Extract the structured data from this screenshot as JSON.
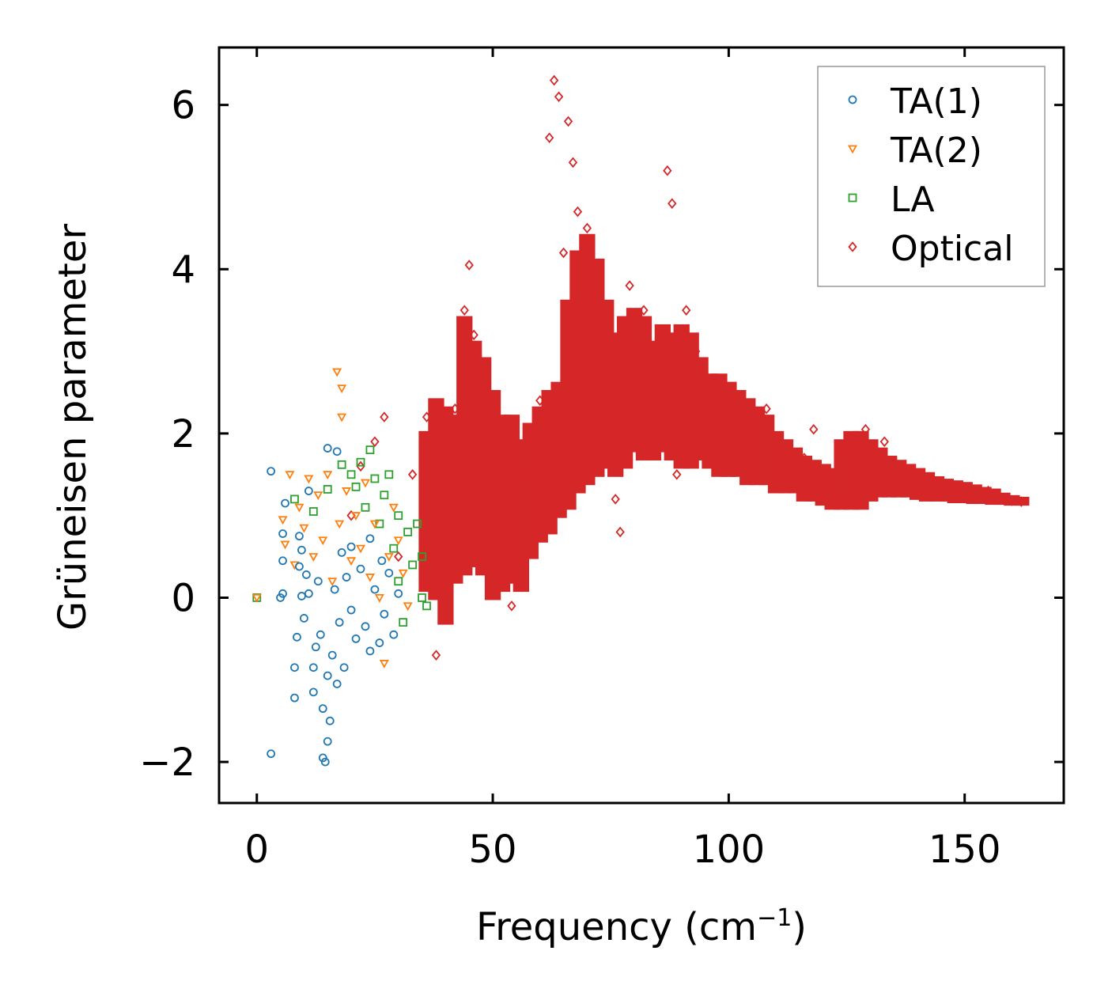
{
  "chart_data": {
    "type": "scatter",
    "title": "",
    "xlabel": "Frequency (cm",
    "xlabel_sup": "−1",
    "xlabel_end": ")",
    "ylabel": "Grüneisen parameter",
    "xlim": [
      -8,
      171
    ],
    "ylim": [
      -2.5,
      6.7
    ],
    "xticks": [
      0,
      50,
      100,
      150
    ],
    "xtick_labels": [
      "0",
      "50",
      "100",
      "150"
    ],
    "yticks": [
      -2,
      0,
      2,
      4,
      6
    ],
    "ytick_labels": [
      "−2",
      "0",
      "2",
      "4",
      "6"
    ],
    "legend_position": "top-right",
    "series": [
      {
        "name": "TA(1)",
        "marker": "circle",
        "color": "#1f77b4",
        "points": [
          [
            3,
            1.54
          ],
          [
            3,
            -1.9
          ],
          [
            5,
            0.0
          ],
          [
            5.5,
            0.78
          ],
          [
            5.5,
            0.45
          ],
          [
            5.5,
            0.05
          ],
          [
            6,
            1.15
          ],
          [
            8,
            -0.85
          ],
          [
            8,
            -1.22
          ],
          [
            8.5,
            -0.48
          ],
          [
            9,
            0.75
          ],
          [
            9,
            0.38
          ],
          [
            9.5,
            0.58
          ],
          [
            9.5,
            0.02
          ],
          [
            10,
            -0.25
          ],
          [
            10.5,
            0.28
          ],
          [
            11,
            1.3
          ],
          [
            11,
            0.05
          ],
          [
            12,
            -0.85
          ],
          [
            12,
            -1.15
          ],
          [
            12.5,
            -0.6
          ],
          [
            13,
            0.2
          ],
          [
            13.5,
            -0.45
          ],
          [
            14,
            -1.95
          ],
          [
            14,
            -1.35
          ],
          [
            14.5,
            -2.0
          ],
          [
            15,
            1.82
          ],
          [
            15,
            -1.75
          ],
          [
            15,
            -0.95
          ],
          [
            15.5,
            -1.5
          ],
          [
            16,
            -0.7
          ],
          [
            16.5,
            0.1
          ],
          [
            17,
            1.78
          ],
          [
            17,
            -1.05
          ],
          [
            17.5,
            -0.3
          ],
          [
            18,
            0.55
          ],
          [
            18.5,
            -0.85
          ],
          [
            19,
            0.25
          ],
          [
            20,
            -0.15
          ],
          [
            20,
            0.62
          ],
          [
            21,
            -0.5
          ],
          [
            22,
            0.35
          ],
          [
            23,
            -0.35
          ],
          [
            24,
            0.72
          ],
          [
            24,
            -0.65
          ],
          [
            25,
            0.1
          ],
          [
            26,
            -0.55
          ],
          [
            26.5,
            0.45
          ],
          [
            27,
            -0.2
          ],
          [
            28,
            0.3
          ],
          [
            29,
            -0.45
          ],
          [
            30,
            0.05
          ]
        ]
      },
      {
        "name": "TA(2)",
        "marker": "triangle-down",
        "color": "#ff7f0e",
        "points": [
          [
            0,
            0.0
          ],
          [
            5.5,
            0.95
          ],
          [
            6,
            0.65
          ],
          [
            7,
            1.5
          ],
          [
            8,
            0.4
          ],
          [
            9,
            1.1
          ],
          [
            10,
            0.85
          ],
          [
            11,
            1.45
          ],
          [
            12,
            0.5
          ],
          [
            13,
            1.25
          ],
          [
            14,
            0.7
          ],
          [
            15,
            1.5
          ],
          [
            16,
            0.2
          ],
          [
            17,
            2.75
          ],
          [
            17.5,
            0.9
          ],
          [
            18,
            2.55
          ],
          [
            18,
            2.2
          ],
          [
            19,
            1.3
          ],
          [
            20,
            0.45
          ],
          [
            21,
            1.0
          ],
          [
            22,
            0.6
          ],
          [
            23,
            1.4
          ],
          [
            24,
            0.25
          ],
          [
            25,
            0.9
          ],
          [
            26,
            0.0
          ],
          [
            27,
            -0.8
          ],
          [
            28,
            0.5
          ],
          [
            29,
            1.1
          ],
          [
            30,
            0.7
          ],
          [
            31,
            0.3
          ],
          [
            32,
            -0.1
          ]
        ]
      },
      {
        "name": "LA",
        "marker": "square",
        "color": "#2ca02c",
        "points": [
          [
            0,
            0.0
          ],
          [
            8,
            1.2
          ],
          [
            12,
            1.05
          ],
          [
            15,
            1.32
          ],
          [
            18,
            1.62
          ],
          [
            20,
            1.5
          ],
          [
            21,
            1.35
          ],
          [
            22,
            1.65
          ],
          [
            23,
            1.1
          ],
          [
            24,
            1.8
          ],
          [
            25,
            1.45
          ],
          [
            26,
            0.9
          ],
          [
            27,
            1.25
          ],
          [
            28,
            1.5
          ],
          [
            29,
            0.6
          ],
          [
            30,
            1.0
          ],
          [
            30,
            0.2
          ],
          [
            31,
            -0.3
          ],
          [
            32,
            0.8
          ],
          [
            33,
            0.4
          ],
          [
            34,
            0.9
          ],
          [
            35,
            0.5
          ],
          [
            35,
            0.0
          ],
          [
            36,
            -0.1
          ]
        ]
      },
      {
        "name": "Optical",
        "marker": "diamond",
        "color": "#d62728",
        "points": [
          [
            20,
            1.0
          ],
          [
            22,
            1.6
          ],
          [
            25,
            1.9
          ],
          [
            27,
            2.2
          ],
          [
            30,
            0.5
          ],
          [
            33,
            1.5
          ],
          [
            36,
            2.2
          ],
          [
            38,
            -0.7
          ],
          [
            40,
            1.3
          ],
          [
            42,
            2.3
          ],
          [
            44,
            3.5
          ],
          [
            45,
            4.05
          ],
          [
            46,
            3.2
          ],
          [
            48,
            2.7
          ],
          [
            50,
            1.2
          ],
          [
            52,
            0.2
          ],
          [
            54,
            -0.1
          ],
          [
            56,
            1.5
          ],
          [
            58,
            2.0
          ],
          [
            60,
            2.4
          ],
          [
            62,
            5.6
          ],
          [
            63,
            6.3
          ],
          [
            64,
            6.1
          ],
          [
            65,
            4.2
          ],
          [
            66,
            5.8
          ],
          [
            67,
            5.3
          ],
          [
            68,
            4.7
          ],
          [
            70,
            4.5
          ],
          [
            72,
            4.0
          ],
          [
            74,
            3.1
          ],
          [
            76,
            1.2
          ],
          [
            77,
            0.8
          ],
          [
            79,
            3.8
          ],
          [
            82,
            3.5
          ],
          [
            85,
            2.0
          ],
          [
            87,
            5.2
          ],
          [
            88,
            4.8
          ],
          [
            89,
            1.5
          ],
          [
            91,
            3.5
          ],
          [
            93,
            3.0
          ],
          [
            95,
            2.3
          ],
          [
            98,
            2.6
          ],
          [
            100,
            2.4
          ],
          [
            102,
            2.2
          ],
          [
            105,
            2.0
          ],
          [
            108,
            2.3
          ],
          [
            110,
            1.8
          ],
          [
            113,
            1.5
          ],
          [
            116,
            1.7
          ],
          [
            118,
            2.05
          ],
          [
            120,
            1.4
          ],
          [
            123,
            1.2
          ],
          [
            125,
            1.9
          ],
          [
            127,
            1.7
          ],
          [
            129,
            2.05
          ],
          [
            131,
            1.5
          ],
          [
            133,
            1.9
          ],
          [
            135,
            1.6
          ],
          [
            138,
            1.5
          ],
          [
            140,
            1.45
          ],
          [
            143,
            1.4
          ],
          [
            146,
            1.35
          ],
          [
            149,
            1.3
          ],
          [
            152,
            1.25
          ],
          [
            155,
            1.3
          ],
          [
            158,
            1.2
          ],
          [
            160,
            1.18
          ],
          [
            162,
            1.17
          ]
        ],
        "bands": [
          [
            36,
            0.1,
            2.0
          ],
          [
            38,
            0.0,
            2.4
          ],
          [
            40,
            -0.3,
            2.3
          ],
          [
            42,
            0.2,
            2.2
          ],
          [
            44,
            0.3,
            3.4
          ],
          [
            46,
            0.4,
            3.1
          ],
          [
            48,
            0.3,
            2.9
          ],
          [
            50,
            0.0,
            2.5
          ],
          [
            52,
            0.1,
            2.2
          ],
          [
            54,
            0.2,
            2.2
          ],
          [
            56,
            0.1,
            1.9
          ],
          [
            58,
            0.5,
            2.1
          ],
          [
            60,
            0.7,
            2.3
          ],
          [
            62,
            0.8,
            2.5
          ],
          [
            64,
            1.0,
            2.6
          ],
          [
            66,
            1.1,
            3.6
          ],
          [
            68,
            1.3,
            4.2
          ],
          [
            70,
            1.4,
            4.4
          ],
          [
            72,
            1.5,
            4.1
          ],
          [
            74,
            1.6,
            3.6
          ],
          [
            76,
            1.5,
            3.2
          ],
          [
            78,
            1.6,
            3.4
          ],
          [
            80,
            1.8,
            3.5
          ],
          [
            82,
            1.7,
            3.4
          ],
          [
            84,
            1.7,
            3.1
          ],
          [
            86,
            1.8,
            3.3
          ],
          [
            88,
            1.7,
            3.2
          ],
          [
            90,
            1.6,
            3.3
          ],
          [
            92,
            1.6,
            3.2
          ],
          [
            94,
            1.7,
            2.9
          ],
          [
            96,
            1.6,
            2.7
          ],
          [
            98,
            1.5,
            2.7
          ],
          [
            100,
            1.5,
            2.6
          ],
          [
            102,
            1.5,
            2.5
          ],
          [
            104,
            1.4,
            2.4
          ],
          [
            106,
            1.4,
            2.3
          ],
          [
            108,
            1.4,
            2.2
          ],
          [
            110,
            1.3,
            2.0
          ],
          [
            112,
            1.3,
            1.9
          ],
          [
            114,
            1.3,
            1.8
          ],
          [
            116,
            1.2,
            1.7
          ],
          [
            118,
            1.2,
            1.65
          ],
          [
            120,
            1.15,
            1.6
          ],
          [
            122,
            1.1,
            1.55
          ],
          [
            124,
            1.1,
            1.9
          ],
          [
            126,
            1.1,
            2.0
          ],
          [
            128,
            1.1,
            2.0
          ],
          [
            130,
            1.2,
            1.9
          ],
          [
            132,
            1.25,
            1.8
          ],
          [
            134,
            1.25,
            1.7
          ],
          [
            136,
            1.25,
            1.65
          ],
          [
            138,
            1.25,
            1.6
          ],
          [
            140,
            1.22,
            1.55
          ],
          [
            142,
            1.2,
            1.5
          ],
          [
            144,
            1.2,
            1.45
          ],
          [
            146,
            1.2,
            1.42
          ],
          [
            148,
            1.18,
            1.4
          ],
          [
            150,
            1.18,
            1.38
          ],
          [
            152,
            1.17,
            1.35
          ],
          [
            154,
            1.17,
            1.32
          ],
          [
            156,
            1.16,
            1.3
          ],
          [
            158,
            1.16,
            1.25
          ],
          [
            160,
            1.15,
            1.22
          ],
          [
            162,
            1.15,
            1.2
          ]
        ]
      }
    ]
  }
}
